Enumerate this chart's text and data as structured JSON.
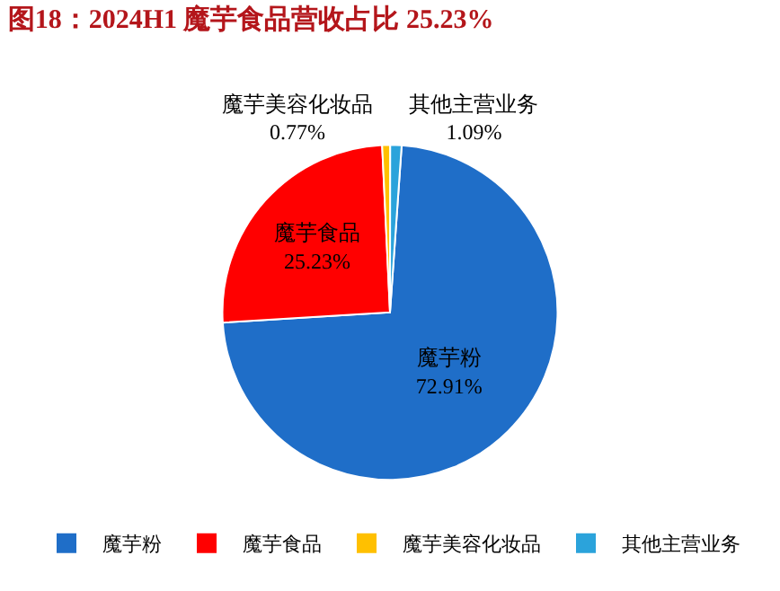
{
  "chart_data": {
    "type": "pie",
    "title": "图18：2024H1 魔芋食品营收占比 25.23%",
    "categories": [
      "魔芋粉",
      "魔芋食品",
      "魔芋美容化妆品",
      "其他主营业务"
    ],
    "values": [
      72.91,
      25.23,
      0.77,
      1.09
    ],
    "value_labels": [
      "72.91%",
      "25.23%",
      "0.77%",
      "1.09%"
    ],
    "colors": [
      "#1f6ec8",
      "#ff0000",
      "#ffc000",
      "#2ba3db"
    ],
    "legend": "bottom"
  }
}
